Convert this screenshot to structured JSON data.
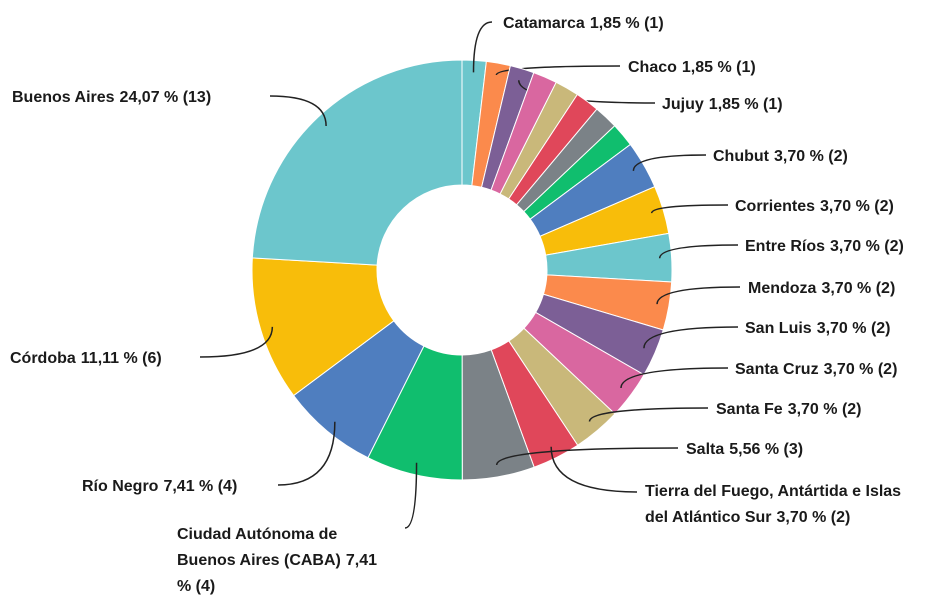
{
  "chart_data": {
    "type": "donut",
    "categories": [
      "Catamarca",
      "Chaco",
      "Jujuy",
      null,
      null,
      null,
      null,
      null,
      "Chubut",
      "Corrientes",
      "Entre Ríos",
      "Mendoza",
      "San Luis",
      "Santa Cruz",
      "Santa Fe",
      "Tierra del Fuego, Antártida e Islas del Atlántico Sur",
      "Salta",
      "Ciudad Autónoma de Buenos Aires (CABA)",
      "Río Negro",
      "Córdoba",
      "Buenos Aires"
    ],
    "values": [
      1.85,
      1.85,
      1.85,
      1.85,
      1.85,
      1.85,
      1.85,
      1.85,
      3.7,
      3.7,
      3.7,
      3.7,
      3.7,
      3.7,
      3.7,
      3.7,
      5.56,
      7.41,
      7.41,
      11.11,
      24.07
    ],
    "value_labels": [
      "1,85 % (1)",
      "1,85 % (1)",
      "1,85 % (1)",
      null,
      null,
      null,
      null,
      null,
      "3,70 % (2)",
      "3,70 % (2)",
      "3,70 % (2)",
      "3,70 % (2)",
      "3,70 % (2)",
      "3,70 % (2)",
      "3,70 % (2)",
      "3,70 % (2)",
      "5,56 % (3)",
      "7,41 % (4)",
      "7,41 % (4)",
      "11,11 % (6)",
      "24,07 % (13)"
    ],
    "colors": [
      "#6cc6cc",
      "#fb8a4c",
      "#7c5f96",
      "#d967a0",
      "#c9b87a",
      "#e0475a",
      "#7b8287",
      "#10be6e",
      "#4f7ebf",
      "#f8bd0a",
      "#6cc6cc",
      "#fb8a4c",
      "#7c5f96",
      "#d967a0",
      "#c9b87a",
      "#e0475a",
      "#7b8287",
      "#10be6e",
      "#4f7ebf",
      "#f8bd0a",
      "#6cc6cc"
    ]
  }
}
